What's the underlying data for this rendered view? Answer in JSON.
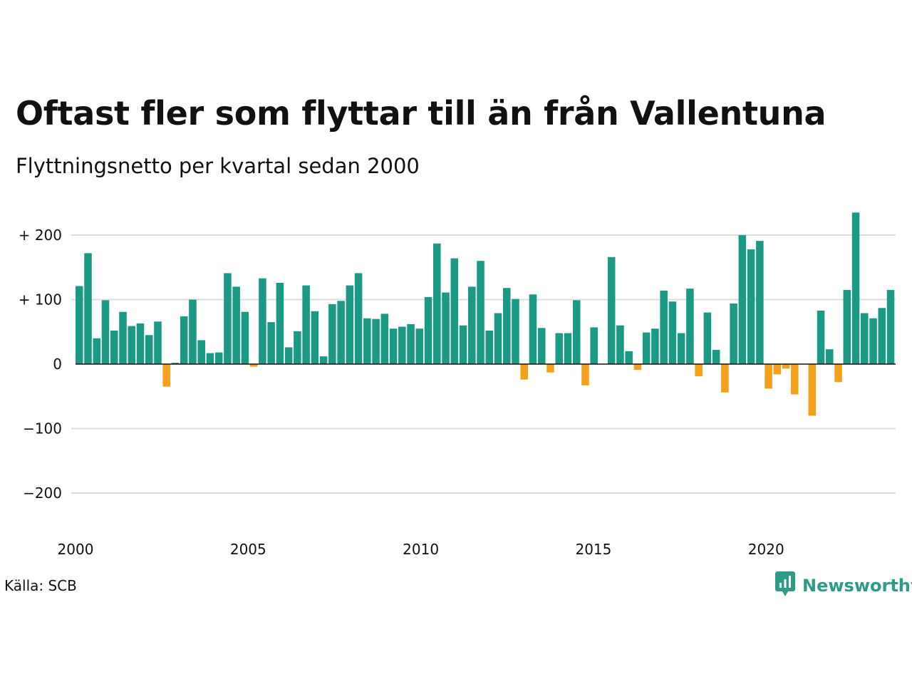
{
  "title": "Oftast fler som flyttar till än från Vallentuna",
  "subtitle": "Flyttningsnetto per kvartal sedan 2000",
  "source": "Källa: SCB",
  "brand": {
    "name": "Newsworthy",
    "icon": "newsworthy-logo-icon",
    "color": "#2a9c88"
  },
  "colors": {
    "positive": "#1a9985",
    "negative": "#f5a01a",
    "grid": "#dddddd",
    "zero": "#111111"
  },
  "chart_data": {
    "type": "bar",
    "title": "Oftast fler som flyttar till än från Vallentuna",
    "subtitle": "Flyttningsnetto per kvartal sedan 2000",
    "xlabel": "",
    "ylabel": "",
    "ylim": [
      -240,
      240
    ],
    "xlim": [
      2000,
      2023.75
    ],
    "yticks": [
      200,
      100,
      0,
      -100,
      -200
    ],
    "ytick_labels": [
      "+ 200",
      "+ 100",
      "0",
      "−100",
      "−200"
    ],
    "xticks": [
      2000,
      2005,
      2010,
      2015,
      2020
    ],
    "xtick_labels": [
      "2000",
      "2005",
      "2010",
      "2015",
      "2020"
    ],
    "grid": "horizontal",
    "start_year": 2000,
    "values": [
      121,
      172,
      40,
      99,
      52,
      81,
      59,
      63,
      45,
      66,
      -35,
      2,
      74,
      100,
      37,
      17,
      18,
      141,
      120,
      81,
      -4,
      133,
      65,
      126,
      26,
      51,
      122,
      82,
      12,
      93,
      98,
      122,
      141,
      71,
      70,
      78,
      55,
      58,
      62,
      55,
      104,
      187,
      111,
      164,
      60,
      120,
      160,
      52,
      79,
      118,
      101,
      -24,
      108,
      56,
      -13,
      48,
      48,
      99,
      -33,
      57,
      0,
      166,
      60,
      20,
      -9,
      49,
      55,
      114,
      97,
      48,
      117,
      -19,
      80,
      22,
      -44,
      94,
      200,
      178,
      191,
      -38,
      -16,
      -7,
      -47,
      0,
      -80,
      83,
      23,
      -28,
      115,
      235,
      79,
      71,
      87,
      115
    ]
  }
}
